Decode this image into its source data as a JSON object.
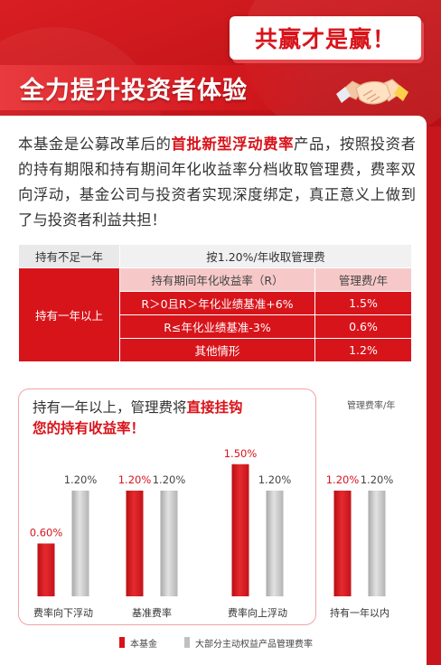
{
  "slogan": "共赢才是赢！",
  "title": "全力提升投资者体验",
  "intro": {
    "part1": "本基金是公募改革后的",
    "highlight": "首批新型浮动费率",
    "part2": "产品，按照投资者的持有期限和持有期间年化收益率分档收取管理费，费率双向浮动，基金公司与投资者实现深度绑定，真正意义上做到了与投资者利益共担！"
  },
  "fee_table": {
    "row_short": {
      "label": "持有不足一年",
      "value": "按1.20%/年收取管理费"
    },
    "row_long_label": "持有一年以上",
    "header": {
      "condition": "持有期间年化收益率（R）",
      "fee": "管理费/年"
    },
    "rows": [
      {
        "condition": "R＞0且R＞年化业绩基准+6%",
        "fee": "1.5%"
      },
      {
        "condition": "R≤年化业绩基准-3%",
        "fee": "0.6%"
      },
      {
        "condition": "其他情形",
        "fee": "1.2%"
      }
    ]
  },
  "chart_heading": {
    "part1": "持有一年以上，管理费将",
    "highlight1": "直接挂钩",
    "highlight2": "您的持有收益率！"
  },
  "colors": {
    "primary": "#d8141b",
    "series_fund": "#d8141b",
    "series_others": "#c0c0c0"
  },
  "chart_data": {
    "type": "bar",
    "ylabel": "管理费率/年",
    "categories": [
      "费率向下浮动",
      "基准费率",
      "费率向上浮动",
      "持有一年以内"
    ],
    "series": [
      {
        "name": "本基金",
        "values": [
          0.6,
          1.2,
          1.5,
          1.2
        ],
        "labels": [
          "0.60%",
          "1.20%",
          "1.50%",
          "1.20%"
        ]
      },
      {
        "name": "大部分主动权益产品管理费率",
        "values": [
          1.2,
          1.2,
          1.2,
          1.2
        ],
        "labels": [
          "1.20%",
          "1.20%",
          "1.20%",
          "1.20%"
        ]
      }
    ],
    "ylim": [
      0,
      1.6
    ],
    "grid": false,
    "legend_position": "bottom"
  }
}
